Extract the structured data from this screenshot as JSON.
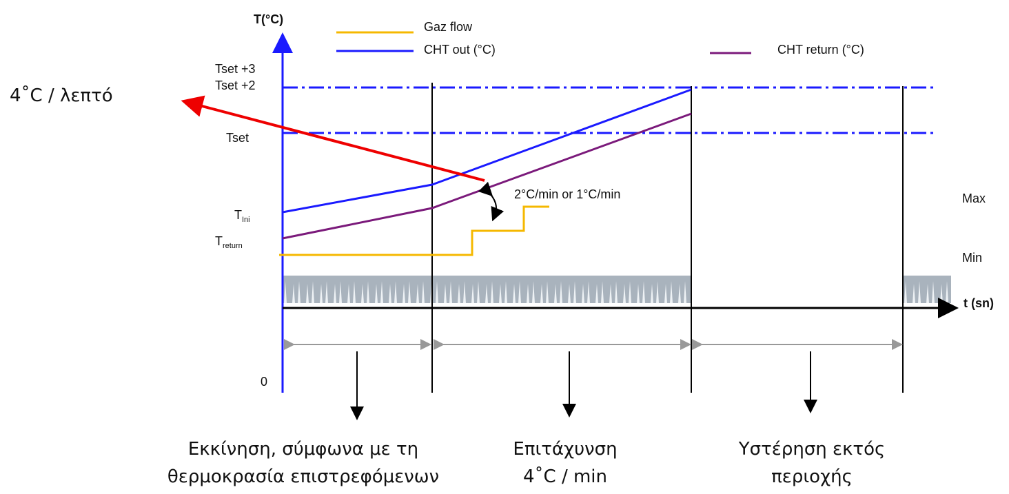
{
  "axis": {
    "y_label": "T(°C)",
    "x_label": "t (sn)",
    "zero": "0"
  },
  "legend": {
    "gas": "Gaz flow",
    "out": "CHT out (°C)",
    "return": "CHT return (°C)"
  },
  "y_labels": {
    "tset3": "Tset +3",
    "tset2": "Tset +2",
    "tset": "Tset",
    "tini": {
      "main": "T",
      "sub": "Ini"
    },
    "treturn": {
      "main": "T",
      "sub": "return"
    }
  },
  "right_labels": {
    "max": "Max",
    "min": "Min"
  },
  "annotations": {
    "slope": "2°C/min or 1°C/min",
    "rate": "4˚C / λεπτό"
  },
  "phases": [
    {
      "lines": [
        "Εκκίνηση, σύμφωνα με τη",
        "θερμοκρασία επιστρεφόμενων"
      ]
    },
    {
      "lines": [
        "Επιτάχυνση",
        "4˚C / min"
      ]
    },
    {
      "lines": [
        "Υστέρηση εκτός",
        "περιοχής"
      ]
    }
  ]
}
